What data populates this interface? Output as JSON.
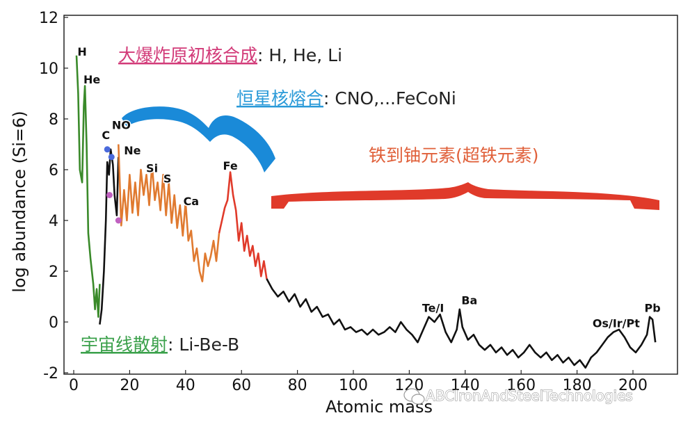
{
  "chart_data": {
    "type": "line",
    "xlabel": "Atomic mass",
    "ylabel": "log abundance (Si=6)",
    "xlim": [
      -5,
      215
    ],
    "ylim": [
      -2,
      12
    ],
    "x_ticks": [
      "0",
      "20",
      "40",
      "60",
      "80",
      "100",
      "120",
      "140",
      "160",
      "180",
      "200"
    ],
    "y_ticks": [
      "-2",
      "0",
      "2",
      "4",
      "6",
      "8",
      "10",
      "12"
    ],
    "series": [
      {
        "color": "#3a8a2a",
        "points": [
          [
            1,
            10.5
          ],
          [
            1.6,
            9.0
          ],
          [
            2.2,
            6.0
          ],
          [
            3,
            5.5
          ],
          [
            3.6,
            8.5
          ],
          [
            4,
            9.3
          ],
          [
            4.6,
            7.0
          ],
          [
            5.2,
            3.5
          ],
          [
            6,
            2.5
          ],
          [
            7,
            1.5
          ],
          [
            7.6,
            0.5
          ],
          [
            8.2,
            1.3
          ],
          [
            8.8,
            0.2
          ],
          [
            9.3,
            1.5
          ]
        ]
      },
      {
        "color": "#111111",
        "points": [
          [
            9.3,
            -0.1
          ],
          [
            10,
            0.5
          ],
          [
            10.8,
            2.0
          ],
          [
            11.5,
            4.0
          ],
          [
            12,
            6.3
          ],
          [
            12.6,
            5.8
          ],
          [
            13.2,
            6.8
          ],
          [
            14,
            6.2
          ],
          [
            14.6,
            5.0
          ],
          [
            15.4,
            4.2
          ],
          [
            16,
            6.5
          ]
        ]
      },
      {
        "color": "#e07a30",
        "points": [
          [
            16,
            7.0
          ],
          [
            17,
            3.8
          ],
          [
            18,
            5.2
          ],
          [
            19,
            4.0
          ],
          [
            20,
            5.8
          ],
          [
            21,
            4.3
          ],
          [
            22,
            5.5
          ],
          [
            23,
            4.2
          ],
          [
            24,
            6.0
          ],
          [
            25,
            5.0
          ],
          [
            26,
            5.8
          ],
          [
            27,
            4.6
          ],
          [
            28,
            6.2
          ],
          [
            29,
            4.8
          ],
          [
            30,
            5.5
          ],
          [
            31,
            4.4
          ],
          [
            32,
            5.8
          ],
          [
            33,
            4.2
          ],
          [
            34,
            5.5
          ],
          [
            35,
            3.9
          ],
          [
            36,
            5.0
          ],
          [
            37,
            3.7
          ],
          [
            38,
            4.6
          ],
          [
            39,
            3.4
          ],
          [
            40,
            4.7
          ],
          [
            41,
            3.2
          ],
          [
            42,
            3.6
          ],
          [
            43,
            2.4
          ],
          [
            44,
            2.9
          ],
          [
            45,
            2.0
          ],
          [
            46,
            1.6
          ],
          [
            47,
            2.7
          ],
          [
            48,
            2.2
          ],
          [
            49,
            2.6
          ],
          [
            50,
            3.2
          ],
          [
            51,
            2.4
          ],
          [
            52,
            3.5
          ]
        ]
      },
      {
        "color": "#e03a2a",
        "points": [
          [
            52,
            3.5
          ],
          [
            53,
            4.0
          ],
          [
            54,
            4.5
          ],
          [
            55,
            4.8
          ],
          [
            56,
            5.9
          ],
          [
            57,
            5.0
          ],
          [
            58,
            4.4
          ],
          [
            59,
            3.2
          ],
          [
            60,
            3.9
          ],
          [
            61,
            2.8
          ],
          [
            62,
            3.4
          ],
          [
            63,
            2.6
          ],
          [
            64,
            3.0
          ],
          [
            65,
            2.2
          ],
          [
            66,
            2.7
          ],
          [
            67,
            1.8
          ],
          [
            68,
            2.4
          ],
          [
            69,
            1.7
          ]
        ]
      },
      {
        "color": "#111111",
        "points": [
          [
            69,
            1.7
          ],
          [
            71,
            1.3
          ],
          [
            73,
            1.0
          ],
          [
            75,
            1.2
          ],
          [
            77,
            0.8
          ],
          [
            79,
            1.1
          ],
          [
            81,
            0.6
          ],
          [
            83,
            0.9
          ],
          [
            85,
            0.4
          ],
          [
            87,
            0.6
          ],
          [
            89,
            0.2
          ],
          [
            91,
            0.3
          ],
          [
            93,
            -0.1
          ],
          [
            95,
            0.1
          ],
          [
            97,
            -0.3
          ],
          [
            99,
            -0.2
          ],
          [
            101,
            -0.4
          ],
          [
            103,
            -0.3
          ],
          [
            105,
            -0.5
          ],
          [
            107,
            -0.3
          ],
          [
            109,
            -0.5
          ],
          [
            111,
            -0.4
          ],
          [
            113,
            -0.2
          ],
          [
            115,
            -0.4
          ],
          [
            117,
            0.0
          ],
          [
            119,
            -0.3
          ],
          [
            121,
            -0.5
          ],
          [
            123,
            -0.8
          ],
          [
            125,
            -0.3
          ],
          [
            127,
            0.2
          ],
          [
            129,
            0.0
          ],
          [
            131,
            0.3
          ],
          [
            133,
            -0.4
          ],
          [
            135,
            -0.8
          ],
          [
            137,
            -0.3
          ],
          [
            138,
            0.5
          ],
          [
            139,
            -0.2
          ],
          [
            141,
            -0.7
          ],
          [
            143,
            -0.5
          ],
          [
            145,
            -0.9
          ],
          [
            147,
            -1.1
          ],
          [
            149,
            -0.9
          ],
          [
            151,
            -1.2
          ],
          [
            153,
            -1.0
          ],
          [
            155,
            -1.3
          ],
          [
            157,
            -1.1
          ],
          [
            159,
            -1.4
          ],
          [
            161,
            -1.2
          ],
          [
            163,
            -0.9
          ],
          [
            165,
            -1.2
          ],
          [
            167,
            -1.4
          ],
          [
            169,
            -1.2
          ],
          [
            171,
            -1.5
          ],
          [
            173,
            -1.3
          ],
          [
            175,
            -1.6
          ],
          [
            177,
            -1.4
          ],
          [
            179,
            -1.7
          ],
          [
            181,
            -1.5
          ],
          [
            183,
            -1.8
          ],
          [
            185,
            -1.4
          ],
          [
            187,
            -1.2
          ],
          [
            189,
            -0.9
          ],
          [
            191,
            -0.6
          ],
          [
            193,
            -0.4
          ],
          [
            195,
            -0.3
          ],
          [
            197,
            -0.6
          ],
          [
            199,
            -1.0
          ],
          [
            201,
            -1.2
          ],
          [
            203,
            -0.9
          ],
          [
            205,
            -0.5
          ],
          [
            206,
            0.2
          ],
          [
            207,
            0.1
          ],
          [
            208,
            -0.8
          ]
        ]
      }
    ],
    "markers": [
      {
        "x": 12,
        "y": 6.8,
        "color": "#4a6adc"
      },
      {
        "x": 13.5,
        "y": 6.5,
        "color": "#4a6adc"
      },
      {
        "x": 12.8,
        "y": 5.0,
        "color": "#c060c0"
      },
      {
        "x": 16,
        "y": 4.0,
        "color": "#c060c0"
      }
    ],
    "element_labels": [
      {
        "text": "H",
        "x": 3,
        "y": 10.5
      },
      {
        "text": "He",
        "x": 6.5,
        "y": 9.4
      },
      {
        "text": "C",
        "x": 11.5,
        "y": 7.2
      },
      {
        "text": "NO",
        "x": 17,
        "y": 7.6
      },
      {
        "text": "Ne",
        "x": 21,
        "y": 6.6
      },
      {
        "text": "Si",
        "x": 28,
        "y": 5.9
      },
      {
        "text": "S",
        "x": 33.5,
        "y": 5.5
      },
      {
        "text": "Ca",
        "x": 42,
        "y": 4.6
      },
      {
        "text": "Fe",
        "x": 56,
        "y": 6.0
      },
      {
        "text": "Te/I",
        "x": 128.5,
        "y": 0.4
      },
      {
        "text": "Ba",
        "x": 141.5,
        "y": 0.7
      },
      {
        "text": "Os/Ir/Pt",
        "x": 194,
        "y": -0.2
      },
      {
        "text": "Pb",
        "x": 207,
        "y": 0.4
      }
    ],
    "annotations": [
      {
        "cjk": "大爆炸原初核合成",
        "rest": ": H, He, Li",
        "color": "#d23a78"
      },
      {
        "cjk": "恒星核熔合",
        "rest": ": CNO,...FeCoNi",
        "color": "#2a9ad8"
      },
      {
        "cjk": "铁到铀元素(超铁元素)",
        "rest": "",
        "color": "#e0603a"
      },
      {
        "cjk": "宇宙线散射",
        "rest": ": Li-Be-B",
        "color": "#3aa04a"
      }
    ],
    "brace_colors": {
      "stellar": "#1a8ad8",
      "heavy": "#e03a2a"
    }
  },
  "watermark": "ABCIronAndSteelTechnologies"
}
